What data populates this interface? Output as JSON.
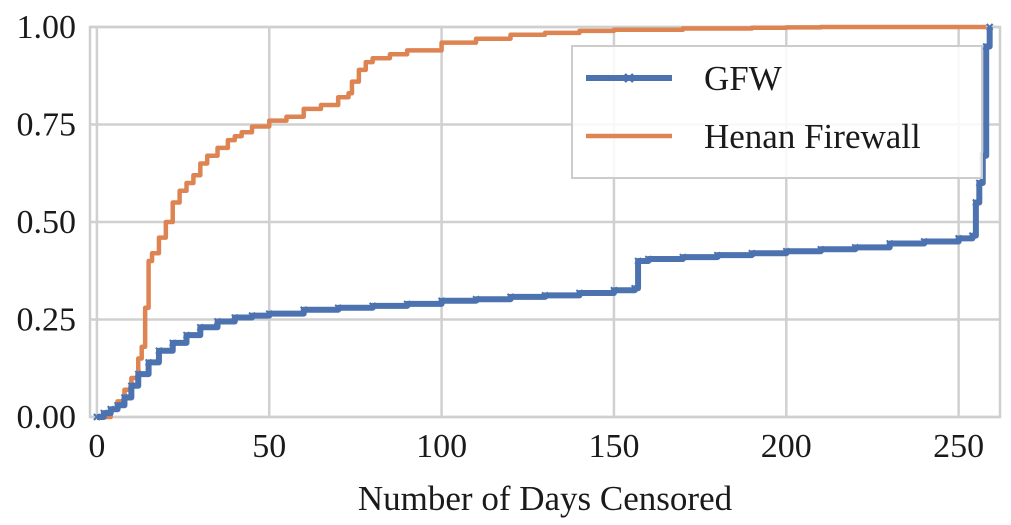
{
  "chart_data": {
    "type": "line",
    "title": "",
    "xlabel": "Number of Days Censored",
    "ylabel": "",
    "xlim": [
      -2,
      262
    ],
    "ylim": [
      0,
      1
    ],
    "x_ticks": [
      0,
      50,
      100,
      150,
      200,
      250
    ],
    "x_tick_labels": [
      "0",
      "50",
      "100",
      "150",
      "200",
      "250"
    ],
    "y_ticks": [
      0,
      0.25,
      0.5,
      0.75,
      1.0
    ],
    "y_tick_labels": [
      "0.00",
      "0.25",
      "0.50",
      "0.75",
      "1.00"
    ],
    "grid": true,
    "legend_position": "top-right",
    "series": [
      {
        "name": "GFW",
        "color": "#4c72b0",
        "marker": "x",
        "x": [
          0,
          2,
          4,
          6,
          8,
          10,
          12,
          15,
          18,
          22,
          26,
          30,
          35,
          40,
          45,
          50,
          60,
          70,
          80,
          90,
          100,
          110,
          120,
          130,
          140,
          150,
          156,
          157,
          160,
          170,
          180,
          190,
          200,
          210,
          220,
          230,
          240,
          250,
          254,
          255,
          256,
          257,
          258,
          259
        ],
        "y": [
          0.0,
          0.01,
          0.02,
          0.03,
          0.05,
          0.08,
          0.11,
          0.14,
          0.17,
          0.19,
          0.21,
          0.23,
          0.245,
          0.255,
          0.26,
          0.265,
          0.275,
          0.28,
          0.285,
          0.29,
          0.298,
          0.302,
          0.308,
          0.312,
          0.318,
          0.325,
          0.33,
          0.4,
          0.405,
          0.41,
          0.415,
          0.42,
          0.425,
          0.43,
          0.435,
          0.445,
          0.45,
          0.458,
          0.465,
          0.55,
          0.6,
          0.67,
          0.95,
          1.0
        ]
      },
      {
        "name": "Henan Firewall",
        "color": "#dd8452",
        "marker": "",
        "x": [
          2,
          4,
          6,
          8,
          10,
          12,
          13,
          14,
          15,
          16,
          18,
          20,
          22,
          24,
          26,
          28,
          30,
          32,
          35,
          38,
          40,
          42,
          45,
          50,
          55,
          60,
          65,
          70,
          73,
          74,
          76,
          78,
          80,
          85,
          90,
          100,
          110,
          120,
          130,
          140,
          150,
          170,
          190,
          200,
          210,
          220,
          240,
          258
        ],
        "y": [
          0.0,
          0.02,
          0.04,
          0.07,
          0.1,
          0.15,
          0.18,
          0.28,
          0.4,
          0.42,
          0.46,
          0.5,
          0.55,
          0.58,
          0.6,
          0.62,
          0.65,
          0.67,
          0.69,
          0.71,
          0.72,
          0.73,
          0.745,
          0.76,
          0.77,
          0.79,
          0.8,
          0.82,
          0.83,
          0.86,
          0.89,
          0.91,
          0.92,
          0.93,
          0.94,
          0.96,
          0.97,
          0.98,
          0.985,
          0.99,
          0.993,
          0.996,
          0.998,
          0.999,
          1.0,
          1.0,
          1.0,
          1.0
        ]
      }
    ]
  }
}
